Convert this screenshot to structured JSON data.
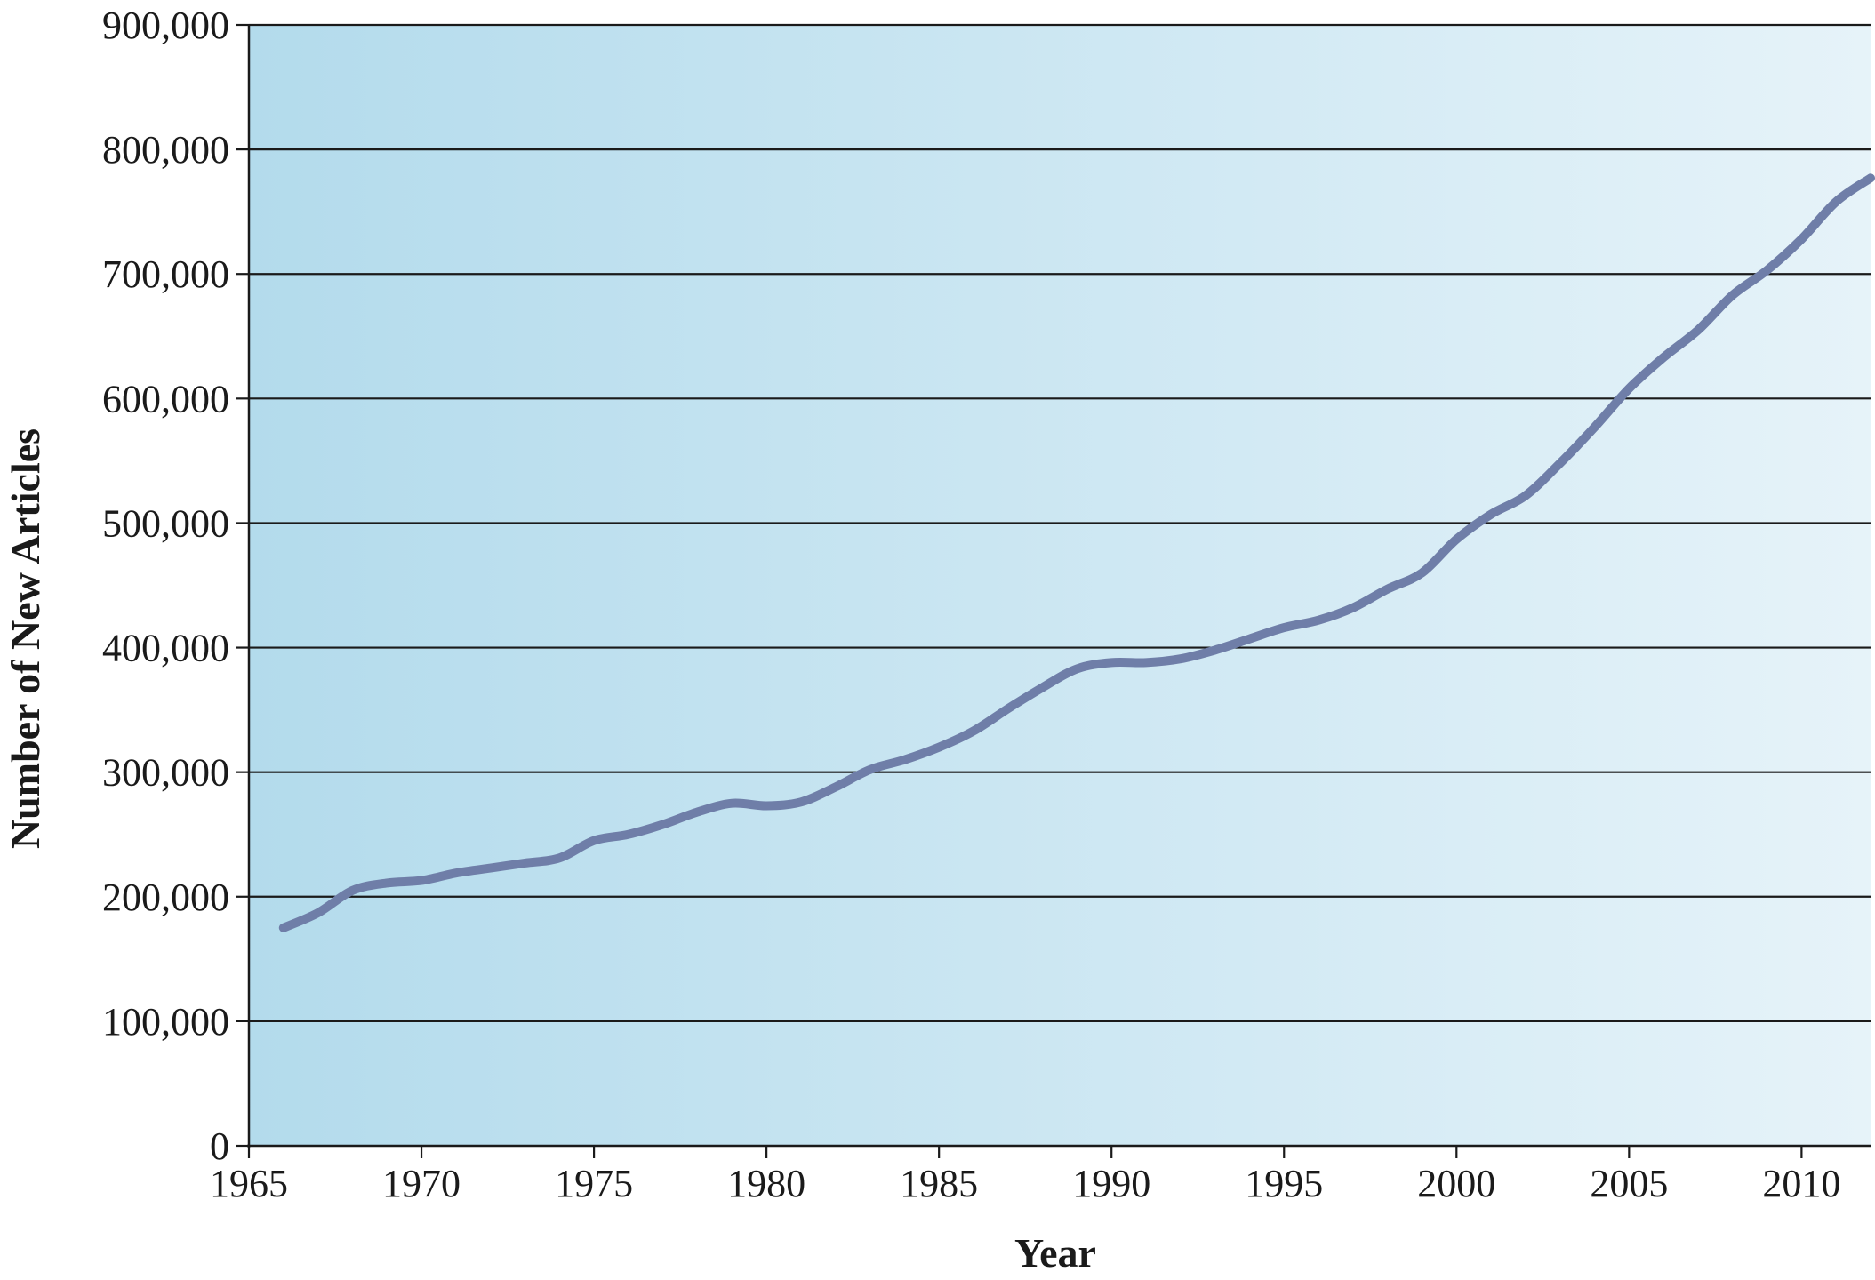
{
  "chart_data": {
    "type": "line",
    "title": "",
    "xlabel": "Year",
    "ylabel": "Number of New Articles",
    "xlim": [
      1965,
      2012
    ],
    "ylim": [
      0,
      900000
    ],
    "x_ticks": [
      1965,
      1970,
      1975,
      1980,
      1985,
      1990,
      1995,
      2000,
      2005,
      2010
    ],
    "x_tick_labels": [
      "1965",
      "1970",
      "1975",
      "1980",
      "1985",
      "1990",
      "1995",
      "2000",
      "2005",
      "2010"
    ],
    "y_ticks": [
      0,
      100000,
      200000,
      300000,
      400000,
      500000,
      600000,
      700000,
      800000,
      900000
    ],
    "y_tick_labels": [
      "0",
      "100,000",
      "200,000",
      "300,000",
      "400,000",
      "500,000",
      "600,000",
      "700,000",
      "800,000",
      "900,000"
    ],
    "grid": "horizontal",
    "legend": "none",
    "colors": {
      "line": "#6f7ea8",
      "background_left": "#b3dbec",
      "background_right": "#e6f3f9",
      "grid": "#1a1a1a"
    },
    "series": [
      {
        "x": [
          1966,
          1967,
          1968,
          1969,
          1970,
          1971,
          1972,
          1973,
          1974,
          1975,
          1976,
          1977,
          1978,
          1979,
          1980,
          1981,
          1982,
          1983,
          1984,
          1985,
          1986,
          1987,
          1988,
          1989,
          1990,
          1991,
          1992,
          1993,
          1994,
          1995,
          1996,
          1997,
          1998,
          1999,
          2000,
          2001,
          2002,
          2003,
          2004,
          2005,
          2006,
          2007,
          2008,
          2009,
          2010,
          2011,
          2012
        ],
        "values": [
          175000,
          187000,
          205000,
          211000,
          213000,
          219000,
          223000,
          227000,
          231000,
          245000,
          250000,
          258000,
          268000,
          275000,
          273000,
          276000,
          288000,
          302000,
          310000,
          320000,
          333000,
          351000,
          368000,
          383000,
          388000,
          388000,
          391000,
          398000,
          407000,
          416000,
          422000,
          432000,
          447000,
          460000,
          487000,
          507000,
          522000,
          548000,
          577000,
          608000,
          633000,
          655000,
          683000,
          703000,
          728000,
          758000,
          777000
        ]
      }
    ]
  }
}
